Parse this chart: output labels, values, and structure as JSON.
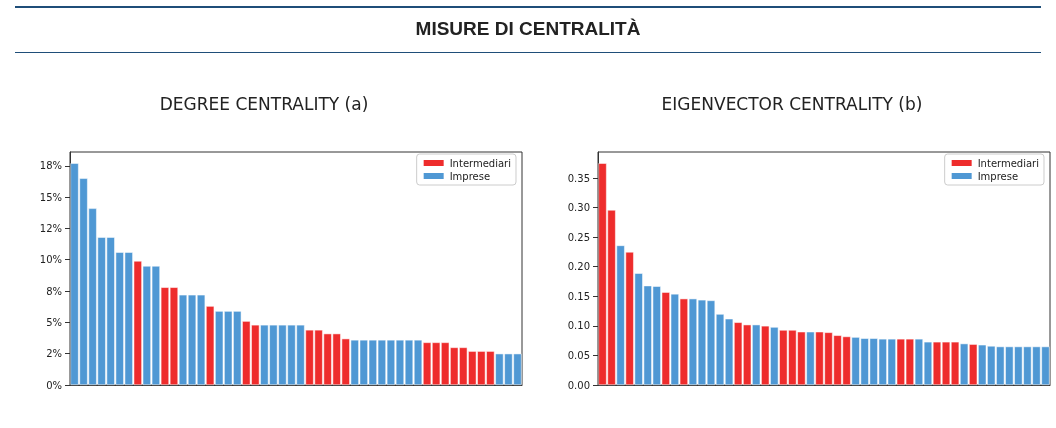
{
  "chart_data": [
    {
      "type": "bar",
      "title": "DEGREE CENTRALITY (a)",
      "annotations": [
        "MISURE DI CENTRALITÀ"
      ],
      "legend": "top right",
      "categories": [
        null,
        null,
        null,
        null,
        null,
        null,
        null,
        null,
        null,
        null,
        null,
        null,
        null,
        null,
        null,
        null,
        null,
        null,
        null,
        null,
        null,
        null,
        null,
        null,
        null,
        null,
        null,
        null,
        null,
        null,
        null,
        null,
        null,
        null,
        null,
        null,
        null,
        null,
        null,
        null,
        null,
        null,
        null,
        null,
        null,
        null,
        null,
        null,
        null,
        null
      ],
      "ylim": [
        0,
        18.6
      ],
      "yticks": [
        {
          "value": 0,
          "label": "0%"
        },
        {
          "value": 2.5,
          "label": "2%"
        },
        {
          "value": 5,
          "label": "5%"
        },
        {
          "value": 7.5,
          "label": "8%"
        },
        {
          "value": 10,
          "label": "10%"
        },
        {
          "value": 12.5,
          "label": "12%"
        },
        {
          "value": 15,
          "label": "15%"
        },
        {
          "value": 17.5,
          "label": "18%"
        }
      ],
      "series": [
        {
          "name": "Intermediari",
          "color": "#ee2c2c",
          "values": [
            null,
            null,
            null,
            null,
            null,
            null,
            null,
            9.9,
            null,
            null,
            7.8,
            7.8,
            null,
            null,
            null,
            6.3,
            null,
            null,
            null,
            5.1,
            4.8,
            null,
            null,
            null,
            null,
            null,
            4.4,
            4.4,
            4.1,
            4.1,
            3.7,
            null,
            null,
            null,
            null,
            null,
            null,
            null,
            null,
            3.4,
            3.4,
            3.4,
            3.0,
            3.0,
            2.7,
            2.7,
            2.7,
            null,
            null,
            null
          ]
        },
        {
          "name": "Imprese",
          "color": "#4f98d4",
          "values": [
            17.7,
            16.5,
            14.1,
            11.8,
            11.8,
            10.6,
            10.6,
            null,
            9.5,
            9.5,
            null,
            null,
            7.2,
            7.2,
            7.2,
            null,
            5.9,
            5.9,
            5.9,
            null,
            null,
            4.8,
            4.8,
            4.8,
            4.8,
            4.8,
            null,
            null,
            null,
            null,
            null,
            3.6,
            3.6,
            3.6,
            3.6,
            3.6,
            3.6,
            3.6,
            3.6,
            null,
            null,
            null,
            null,
            null,
            null,
            null,
            null,
            2.5,
            2.5,
            2.5
          ]
        }
      ]
    },
    {
      "type": "bar",
      "title": "EIGENVECTOR CENTRALITY (b)",
      "legend": "top right",
      "categories": [
        null,
        null,
        null,
        null,
        null,
        null,
        null,
        null,
        null,
        null,
        null,
        null,
        null,
        null,
        null,
        null,
        null,
        null,
        null,
        null,
        null,
        null,
        null,
        null,
        null,
        null,
        null,
        null,
        null,
        null,
        null,
        null,
        null,
        null,
        null,
        null,
        null,
        null,
        null,
        null,
        null,
        null,
        null,
        null,
        null,
        null,
        null,
        null,
        null,
        null
      ],
      "ylim": [
        0,
        0.394
      ],
      "yticks": [
        {
          "value": 0,
          "label": "0.00"
        },
        {
          "value": 0.05,
          "label": "0.05"
        },
        {
          "value": 0.1,
          "label": "0.10"
        },
        {
          "value": 0.15,
          "label": "0.15"
        },
        {
          "value": 0.2,
          "label": "0.20"
        },
        {
          "value": 0.25,
          "label": "0.25"
        },
        {
          "value": 0.3,
          "label": "0.30"
        },
        {
          "value": 0.35,
          "label": "0.35"
        }
      ],
      "series": [
        {
          "name": "Intermediari",
          "color": "#ee2c2c",
          "values": [
            0.375,
            0.296,
            null,
            0.225,
            null,
            null,
            null,
            0.157,
            null,
            0.146,
            null,
            null,
            null,
            null,
            null,
            0.106,
            0.102,
            null,
            0.1,
            null,
            0.093,
            0.093,
            0.09,
            null,
            0.09,
            0.089,
            0.084,
            0.082,
            null,
            null,
            null,
            null,
            null,
            0.078,
            0.078,
            null,
            null,
            0.073,
            0.073,
            0.073,
            null,
            0.069,
            null,
            null,
            null,
            null,
            null,
            null,
            null,
            null
          ]
        },
        {
          "name": "Imprese",
          "color": "#4f98d4",
          "values": [
            null,
            null,
            0.236,
            null,
            0.189,
            0.168,
            0.167,
            null,
            0.154,
            null,
            0.146,
            0.144,
            0.143,
            0.12,
            0.112,
            null,
            null,
            0.102,
            null,
            0.098,
            null,
            null,
            null,
            0.09,
            null,
            null,
            null,
            null,
            0.081,
            0.079,
            0.079,
            0.078,
            0.078,
            null,
            null,
            0.078,
            0.073,
            null,
            null,
            null,
            0.07,
            null,
            0.068,
            0.066,
            0.065,
            0.065,
            0.065,
            0.065,
            0.065,
            0.065
          ]
        }
      ]
    }
  ]
}
